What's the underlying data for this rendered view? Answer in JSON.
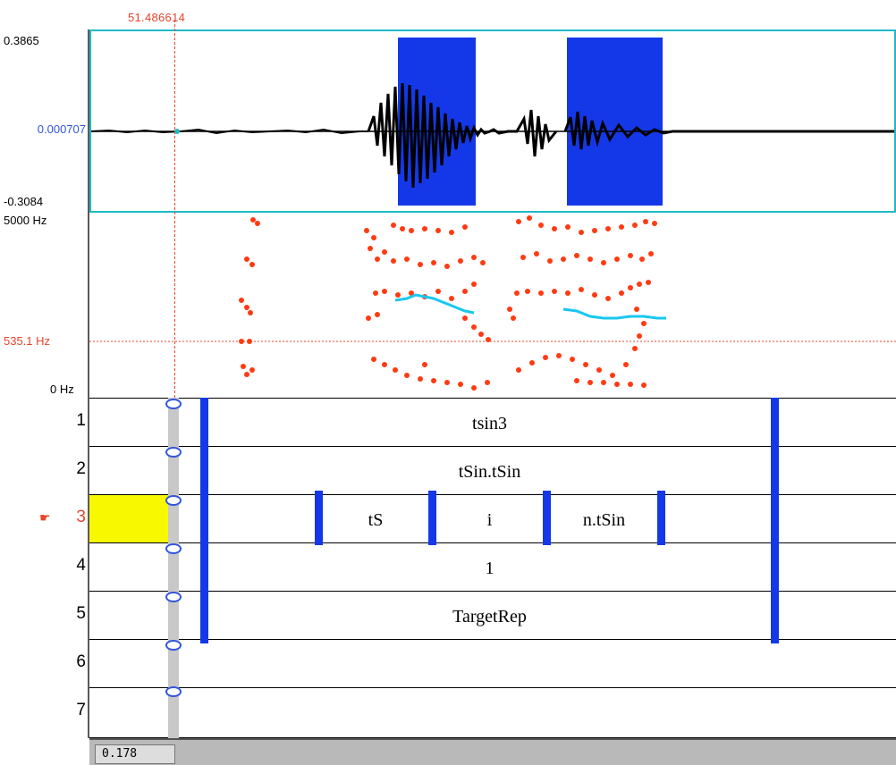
{
  "cursor": {
    "time": "51.486614"
  },
  "waveform": {
    "ymax": "0.3865",
    "ycursor": "0.000707",
    "ymin": "-0.3084"
  },
  "spectrogram": {
    "top_label": "5000 Hz",
    "cursor_label": "535.1 Hz",
    "bottom_label": "0 Hz"
  },
  "tiers": [
    {
      "num": "1",
      "labels": [
        "tsin3"
      ]
    },
    {
      "num": "2",
      "labels": [
        "tSin.tSin"
      ]
    },
    {
      "num": "3",
      "labels": [
        "tS",
        "i",
        "n.tSin"
      ],
      "selected": true
    },
    {
      "num": "4",
      "labels": [
        "1"
      ]
    },
    {
      "num": "5",
      "labels": [
        "TargetRep"
      ]
    },
    {
      "num": "6",
      "labels": []
    },
    {
      "num": "7",
      "labels": []
    }
  ],
  "status": {
    "zoom_value": "0.178"
  },
  "colors": {
    "cursor": "#e8442c",
    "selection": "#1438e8",
    "formant": "#ff3a12",
    "pitch": "#18c8f0",
    "active_tier": "#f8f800"
  }
}
